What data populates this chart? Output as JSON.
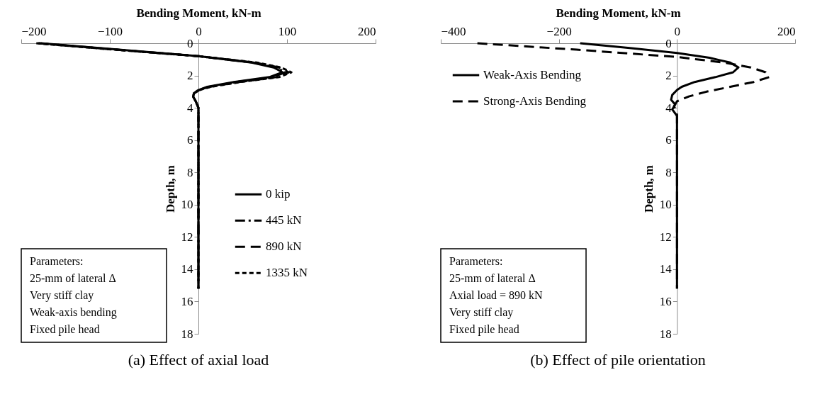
{
  "chart_data": [
    {
      "type": "line",
      "title": "(a) Effect of axial load",
      "xlabel": "Bending Moment, kN-m",
      "ylabel": "Depth, m",
      "xlim": [
        -200,
        200
      ],
      "xticks": [
        -200,
        -100,
        0,
        100,
        200
      ],
      "ylim": [
        18,
        0
      ],
      "yticks": [
        0,
        2,
        4,
        6,
        8,
        10,
        12,
        14,
        16,
        18
      ],
      "grid": false,
      "legend": "right",
      "annotations": [
        "Parameters:",
        "25-mm of lateral Δ",
        "Very stiff clay",
        "Weak-axis bending",
        "Fixed pile head"
      ],
      "series": [
        {
          "name": "0 kip",
          "color": "#000000",
          "line_style": "solid",
          "x": [
            -178,
            -90,
            0,
            60,
            85,
            95,
            80,
            40,
            10,
            0,
            -5,
            -6,
            -3,
            0,
            0,
            0
          ],
          "values": [
            0,
            0.4,
            0.8,
            1.2,
            1.5,
            1.8,
            2.1,
            2.4,
            2.7,
            2.9,
            3.1,
            3.3,
            3.6,
            4,
            5,
            15.2
          ]
        },
        {
          "name": "445 kN",
          "color": "#000000",
          "line_style": "dashdot",
          "x": [
            -180,
            -92,
            0,
            62,
            88,
            98,
            84,
            43,
            12,
            0,
            -5,
            -6,
            -3,
            0,
            0,
            0
          ],
          "values": [
            0,
            0.4,
            0.8,
            1.2,
            1.5,
            1.8,
            2.1,
            2.4,
            2.7,
            2.9,
            3.1,
            3.3,
            3.6,
            4,
            5,
            15.2
          ]
        },
        {
          "name": "890 kN",
          "color": "#000000",
          "line_style": "dashed",
          "x": [
            -181,
            -93,
            0,
            64,
            91,
            102,
            88,
            46,
            13,
            1,
            -5,
            -6,
            -3,
            0,
            0,
            0
          ],
          "values": [
            0,
            0.4,
            0.8,
            1.2,
            1.5,
            1.8,
            2.1,
            2.4,
            2.7,
            2.9,
            3.1,
            3.3,
            3.6,
            4,
            5,
            15.2
          ]
        },
        {
          "name": "1335 kN",
          "color": "#000000",
          "line_style": "dotted",
          "x": [
            -183,
            -95,
            0,
            66,
            93,
            105,
            91,
            48,
            14,
            1,
            -5,
            -6,
            -3,
            0,
            0,
            0
          ],
          "values": [
            0,
            0.4,
            0.8,
            1.2,
            1.5,
            1.8,
            2.1,
            2.4,
            2.7,
            2.9,
            3.1,
            3.3,
            3.6,
            4,
            5,
            15.2
          ]
        }
      ]
    },
    {
      "type": "line",
      "title": "(b) Effect of pile orientation",
      "xlabel": "Bending Moment, kN-m",
      "ylabel": "Depth, m",
      "xlim": [
        -400,
        200
      ],
      "xticks": [
        -400,
        -200,
        0,
        200
      ],
      "ylim": [
        18,
        0
      ],
      "yticks": [
        0,
        2,
        4,
        6,
        8,
        10,
        12,
        14,
        16,
        18
      ],
      "grid": false,
      "legend": "top left",
      "annotations": [
        "Parameters:",
        "25-mm of lateral Δ",
        "Axial load = 890 kN",
        "Very stiff clay",
        "Fixed pile head"
      ],
      "series": [
        {
          "name": "Weak-Axis Bending",
          "color": "#000000",
          "line_style": "solid",
          "x": [
            -164,
            -80,
            0,
            55,
            90,
            104,
            95,
            65,
            30,
            8,
            0,
            -8,
            -10,
            -3,
            -8,
            0,
            0
          ],
          "values": [
            0,
            0.3,
            0.6,
            0.9,
            1.2,
            1.5,
            1.8,
            2.1,
            2.4,
            2.7,
            2.9,
            3.2,
            3.5,
            3.8,
            4.1,
            4.5,
            15.2
          ]
        },
        {
          "name": "Strong-Axis Bending",
          "color": "#000000",
          "line_style": "dashed",
          "x": [
            -338,
            -170,
            0,
            80,
            125,
            150,
            156,
            130,
            90,
            50,
            20,
            0,
            -5,
            0,
            0
          ],
          "values": [
            0,
            0.4,
            0.85,
            1.2,
            1.5,
            1.8,
            2.1,
            2.4,
            2.7,
            3.0,
            3.3,
            3.6,
            3.9,
            4.3,
            15.2
          ]
        }
      ]
    }
  ]
}
